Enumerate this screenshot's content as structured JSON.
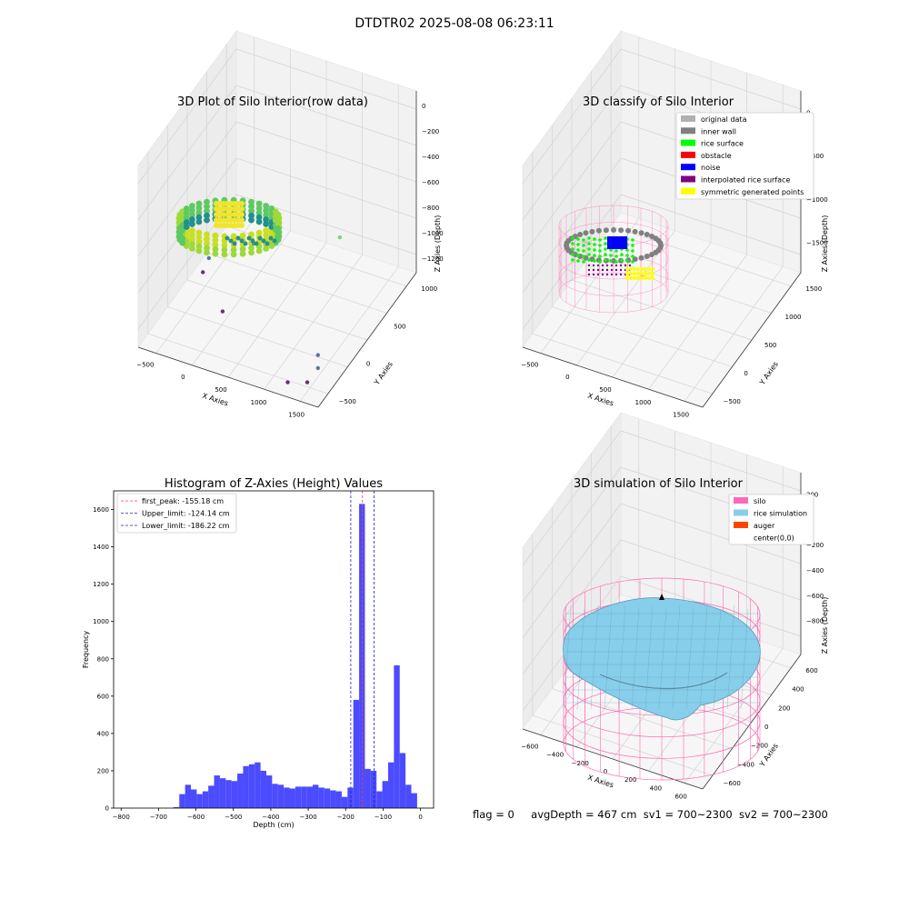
{
  "figure": {
    "suptitle": "DTDTR02 2025-08-08 06:23:11",
    "status_line": {
      "flag": "flag = 0",
      "avg_depth": "avgDepth = 467 cm",
      "sv1": "sv1 = 700~2300",
      "sv2": "sv2 = 700~2300"
    }
  },
  "colors": {
    "hist_bar": "#4b4bff",
    "first_peak": "#ff4040",
    "limits": "#2020c0",
    "original_data": "#b0b0b0",
    "inner_wall": "#808080",
    "rice_surface": "#00ff00",
    "obstacle": "#ff0000",
    "noise": "#0000ff",
    "interpolated_rice_surface": "#800080",
    "symmetric_generated_points": "#ffff00",
    "silo": "#ff69b4",
    "rice_simulation": "#87ceeb",
    "auger": "#ff4500"
  },
  "chart_data": [
    {
      "type": "scatter",
      "projection": "3d",
      "title": "3D Plot of Silo Interior(row data)",
      "xlabel": "X Axies",
      "ylabel": "Y Axies",
      "zlabel": "Z Axies (Depth)",
      "x_ticks": [
        "−500",
        "0",
        "500",
        "1000",
        "1500"
      ],
      "y_ticks": [
        "−500",
        "0",
        "500",
        "1000"
      ],
      "z_ticks": [
        "0",
        "−200",
        "−400",
        "−600",
        "−800",
        "−1000",
        "−1200"
      ],
      "colormap": "viridis",
      "grid": true,
      "outliers": [
        {
          "x": 1350,
          "y": 200,
          "z": -580
        },
        {
          "x": 1550,
          "y": -450,
          "z": -1050
        },
        {
          "x": 1550,
          "y": -450,
          "z": -1150
        },
        {
          "x": 1450,
          "y": -500,
          "z": -1250
        },
        {
          "x": 300,
          "y": 350,
          "z": -700
        },
        {
          "x": 250,
          "y": 200,
          "z": -850
        },
        {
          "x": -250,
          "y": 100,
          "z": -1000
        },
        {
          "x": -400,
          "y": 200,
          "z": -1200
        },
        {
          "x": 0,
          "y": 0,
          "z": -1300
        },
        {
          "x": 1200,
          "y": -500,
          "z": -1300
        }
      ]
    },
    {
      "type": "scatter",
      "projection": "3d",
      "title": "3D classify of Silo Interior",
      "xlabel": "X Axies",
      "ylabel": "Y Axies",
      "zlabel": "Z Axies (Depth)",
      "x_ticks": [
        "−500",
        "0",
        "500",
        "1000",
        "1500"
      ],
      "y_ticks": [
        "−500",
        "0",
        "500",
        "1000",
        "1500"
      ],
      "z_ticks": [
        "0",
        "−500",
        "−1000",
        "−1500"
      ],
      "legend_position": "top-right",
      "legend": [
        {
          "label": "original data",
          "color_key": "original_data"
        },
        {
          "label": "inner wall",
          "color_key": "inner_wall"
        },
        {
          "label": "rice surface",
          "color_key": "rice_surface"
        },
        {
          "label": "obstacle",
          "color_key": "obstacle"
        },
        {
          "label": "noise",
          "color_key": "noise"
        },
        {
          "label": "interpolated rice surface",
          "color_key": "interpolated_rice_surface"
        },
        {
          "label": "symmetric generated points",
          "color_key": "symmetric_generated_points"
        }
      ],
      "grid": true
    },
    {
      "type": "bar",
      "title": "Histogram of Z-Axies (Height) Values",
      "xlabel": "Depth (cm)",
      "ylabel": "Frequency",
      "xlim": [
        -820,
        35
      ],
      "ylim": [
        0,
        1700
      ],
      "x_ticks": [
        -800,
        -700,
        -600,
        -500,
        -400,
        -300,
        -200,
        -100,
        0
      ],
      "y_ticks": [
        0,
        200,
        400,
        600,
        800,
        1000,
        1200,
        1400,
        1600
      ],
      "bin_width": 15.5,
      "bin_start": -660,
      "values": [
        5,
        75,
        125,
        100,
        75,
        90,
        120,
        175,
        160,
        150,
        145,
        185,
        225,
        235,
        245,
        200,
        175,
        130,
        125,
        110,
        105,
        115,
        115,
        115,
        125,
        110,
        105,
        95,
        90,
        60,
        110,
        580,
        1630,
        210,
        200,
        90,
        145,
        245,
        765,
        295,
        125,
        80
      ],
      "vlines": [
        {
          "label": "first_peak: -155.18 cm",
          "x": -155.18,
          "color_key": "first_peak"
        },
        {
          "label": "Upper_limit: -124.14 cm",
          "x": -124.14,
          "color_key": "limits"
        },
        {
          "label": "Lower_limit: -186.22 cm",
          "x": -186.22,
          "color_key": "limits"
        }
      ],
      "legend_position": "top-left"
    },
    {
      "type": "surface",
      "projection": "3d",
      "title": "3D simulation of Silo Interior",
      "xlabel": "X Axies",
      "ylabel": "Y Axies",
      "zlabel": "Z Axies (Depth)",
      "x_ticks": [
        "−600",
        "−400",
        "−200",
        "0",
        "200",
        "400",
        "600"
      ],
      "y_ticks": [
        "−600",
        "−400",
        "−200",
        "0",
        "200",
        "400",
        "600"
      ],
      "z_ticks": [
        "200",
        "0",
        "−200",
        "−400",
        "−600",
        "−800"
      ],
      "legend_position": "top-right",
      "legend": [
        {
          "label": "silo",
          "color_key": "silo"
        },
        {
          "label": "rice simulation",
          "color_key": "rice_simulation"
        },
        {
          "label": "auger",
          "color_key": "auger"
        },
        {
          "label": "center(0,0)",
          "color_key": ""
        }
      ],
      "grid": true
    }
  ]
}
